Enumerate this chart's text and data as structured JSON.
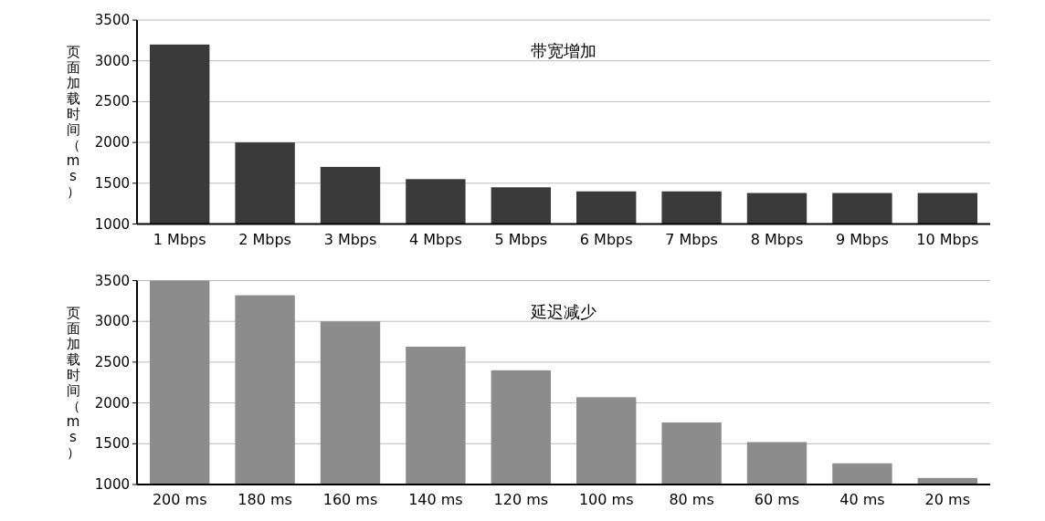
{
  "chart_data": [
    {
      "type": "bar",
      "title": "带宽增加",
      "ylabel": "页面加载时间（ms）",
      "categories": [
        "1 Mbps",
        "2 Mbps",
        "3 Mbps",
        "4 Mbps",
        "5 Mbps",
        "6 Mbps",
        "7 Mbps",
        "8 Mbps",
        "9 Mbps",
        "10 Mbps"
      ],
      "values": [
        3200,
        2000,
        1700,
        1550,
        1450,
        1400,
        1400,
        1380,
        1380,
        1380
      ],
      "color": "#3a3a3a",
      "ylim": [
        1000,
        3500
      ],
      "yticks": [
        1000,
        1500,
        2000,
        2500,
        3000,
        3500
      ],
      "grid": "y"
    },
    {
      "type": "bar",
      "title": "延迟减少",
      "ylabel": "页面加载时间（ms）",
      "categories": [
        "200 ms",
        "180 ms",
        "160 ms",
        "140 ms",
        "120 ms",
        "100 ms",
        "80 ms",
        "60 ms",
        "40 ms",
        "20 ms"
      ],
      "values": [
        3500,
        3320,
        3000,
        2690,
        2400,
        2070,
        1760,
        1520,
        1260,
        1080
      ],
      "color": "#8c8c8c",
      "ylim": [
        1000,
        3500
      ],
      "yticks": [
        1000,
        1500,
        2000,
        2500,
        3000,
        3500
      ],
      "grid": "y"
    }
  ]
}
